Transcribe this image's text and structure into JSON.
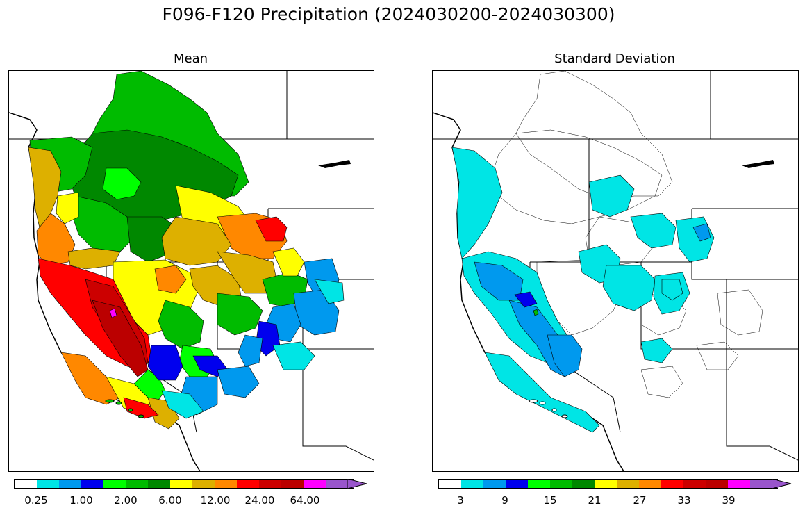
{
  "title": "F096-F120 Precipitation (2024030200-2024030300)",
  "panels": [
    {
      "title": "Mean",
      "colorbar": {
        "colors": [
          "#ffffff",
          "#00e5e5",
          "#0099ee",
          "#0000ee",
          "#00ff00",
          "#00bb00",
          "#008800",
          "#ffff00",
          "#ddb000",
          "#ff8800",
          "#ff0000",
          "#cc0000",
          "#bb0000",
          "#ff00ff",
          "#9955cc"
        ],
        "tick_labels": [
          "0.25",
          "1.00",
          "2.00",
          "6.00",
          "12.00",
          "24.00",
          "64.00"
        ]
      }
    },
    {
      "title": "Standard Deviation",
      "colorbar": {
        "colors": [
          "#ffffff",
          "#00e5e5",
          "#0099ee",
          "#0000ee",
          "#00ff00",
          "#00bb00",
          "#008800",
          "#ffff00",
          "#ddb000",
          "#ff8800",
          "#ff0000",
          "#cc0000",
          "#bb0000",
          "#ff00ff",
          "#9955cc"
        ],
        "tick_labels": [
          "3",
          "9",
          "15",
          "21",
          "27",
          "33",
          "39"
        ]
      }
    }
  ]
}
